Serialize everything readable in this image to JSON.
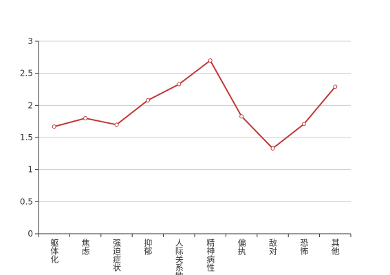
{
  "chart_data": {
    "type": "line",
    "categories": [
      "躯体化",
      "焦虑",
      "强迫症状",
      "抑郁",
      "人际关系敏感",
      "精神病性",
      "偏执",
      "敌对",
      "恐怖",
      "其他"
    ],
    "series": [
      {
        "color": "#c23531",
        "values": [
          1.67,
          1.8,
          1.7,
          2.08,
          2.33,
          2.7,
          1.83,
          1.33,
          1.71,
          2.29
        ]
      }
    ],
    "ylim": [
      0,
      3
    ],
    "yticks": [
      0,
      0.5,
      1,
      1.5,
      2,
      2.5,
      3
    ],
    "grid": true
  }
}
